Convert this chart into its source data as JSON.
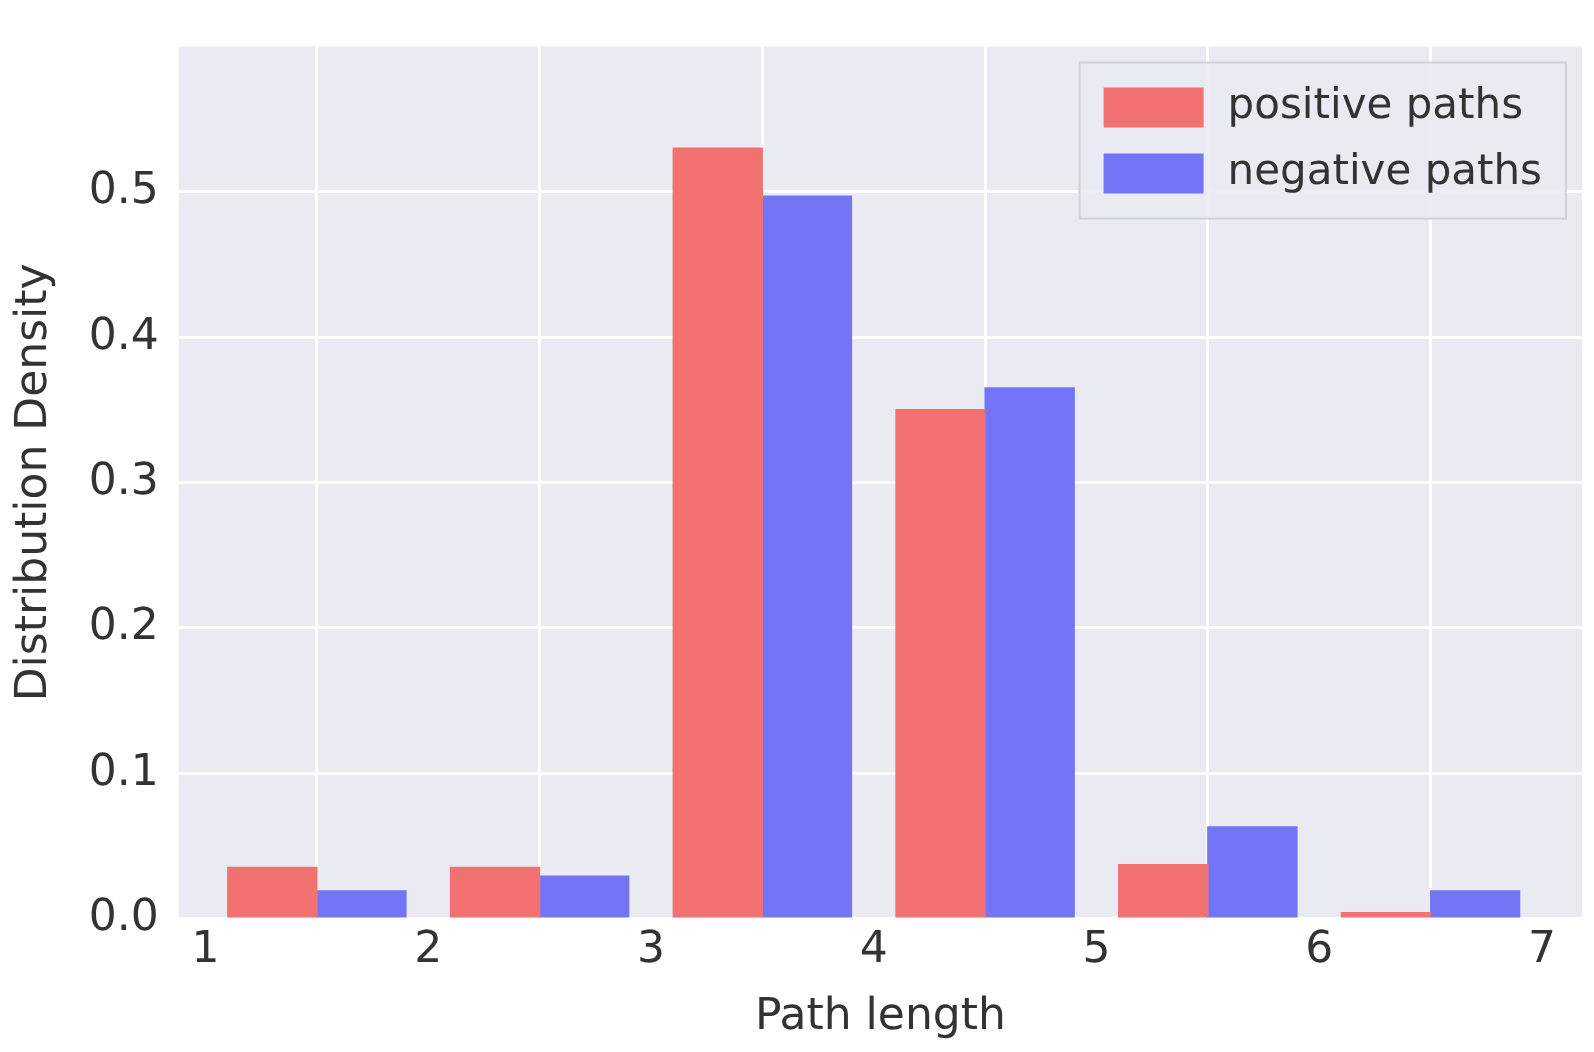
{
  "chart_data": {
    "type": "histogram",
    "xlabel": "Path length",
    "ylabel": "Distribution Density",
    "bins": [
      1,
      2,
      3,
      4,
      5,
      6,
      7
    ],
    "series": [
      {
        "name": "positive paths",
        "color": "#f27272",
        "values": [
          0.035,
          0.035,
          0.53,
          0.35,
          0.037,
          0.004
        ]
      },
      {
        "name": "negative paths",
        "color": "#7474f6",
        "values": [
          0.019,
          0.029,
          0.497,
          0.365,
          0.063,
          0.019
        ]
      }
    ],
    "xlim": [
      0.88,
      7.18
    ],
    "xticks": [
      1,
      2,
      3,
      4,
      5,
      6,
      7
    ],
    "ylim": [
      0,
      0.6
    ],
    "yticks": [
      {
        "value": 0,
        "label": "0.0"
      },
      0.1,
      0.2,
      0.3,
      0.4,
      0.5
    ],
    "grid": true,
    "legend": "top right"
  }
}
